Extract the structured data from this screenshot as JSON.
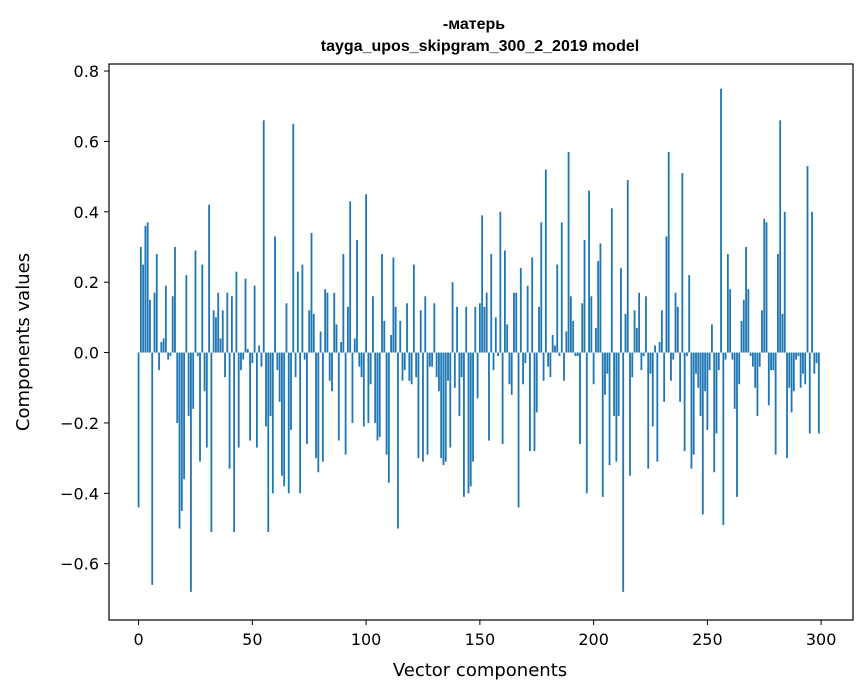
{
  "chart_data": {
    "type": "bar",
    "title": "-матерь",
    "subtitle": "tayga_upos_skipgram_300_2_2019 model",
    "xlabel": "Vector components",
    "ylabel": "Components values",
    "xlim": [
      -13,
      314
    ],
    "ylim": [
      -0.76,
      0.82
    ],
    "xticks": [
      0,
      50,
      100,
      150,
      200,
      250,
      300
    ],
    "yticks": [
      -0.6,
      -0.4,
      -0.2,
      0.0,
      0.2,
      0.4,
      0.6,
      0.8
    ],
    "xtick_labels": [
      "0",
      "50",
      "100",
      "150",
      "200",
      "250",
      "300"
    ],
    "ytick_labels": [
      "−0.6",
      "−0.4",
      "−0.2",
      "0.0",
      "0.2",
      "0.4",
      "0.6",
      "0.8"
    ],
    "bar_color": "#1f77b4",
    "grid": false,
    "legend": "none",
    "values": [
      -0.44,
      0.3,
      0.25,
      0.36,
      0.37,
      0.15,
      -0.66,
      0.17,
      0.28,
      -0.05,
      0.03,
      0.04,
      0.19,
      -0.02,
      -0.01,
      0.16,
      0.3,
      -0.2,
      -0.5,
      -0.45,
      -0.36,
      0.22,
      -0.18,
      -0.68,
      -0.16,
      0.29,
      -0.01,
      -0.31,
      0.25,
      -0.11,
      -0.27,
      0.42,
      -0.51,
      0.12,
      0.1,
      0.17,
      0.04,
      0.12,
      -0.07,
      0.17,
      -0.33,
      0.16,
      -0.51,
      0.23,
      -0.27,
      -0.05,
      -0.02,
      0.21,
      0.01,
      -0.25,
      -0.03,
      0.19,
      -0.27,
      0.02,
      -0.04,
      0.66,
      -0.21,
      -0.51,
      -0.18,
      -0.4,
      0.33,
      -0.05,
      -0.14,
      -0.35,
      -0.38,
      0.14,
      -0.4,
      -0.22,
      0.65,
      -0.07,
      0.23,
      -0.4,
      0.25,
      -0.02,
      -0.26,
      0.12,
      0.34,
      0.11,
      -0.3,
      -0.34,
      0.06,
      -0.31,
      0.18,
      0.17,
      -0.08,
      -0.11,
      0.17,
      0.08,
      -0.25,
      0.03,
      0.28,
      -0.29,
      0.13,
      0.43,
      -0.2,
      0.04,
      0.32,
      -0.04,
      -0.07,
      -0.21,
      0.45,
      -0.2,
      -0.09,
      0.16,
      -0.2,
      -0.25,
      -0.24,
      0.28,
      0.09,
      -0.29,
      -0.37,
      0.05,
      0.27,
      0.13,
      -0.5,
      0.09,
      -0.08,
      -0.05,
      0.14,
      -0.08,
      -0.09,
      0.25,
      -0.07,
      -0.3,
      0.12,
      -0.31,
      0.16,
      -0.29,
      -0.04,
      -0.04,
      0.14,
      -0.07,
      -0.11,
      -0.3,
      -0.32,
      -0.31,
      -0.08,
      -0.27,
      0.2,
      -0.1,
      0.13,
      -0.18,
      -0.07,
      -0.41,
      0.13,
      -0.4,
      -0.38,
      -0.31,
      0.13,
      -0.13,
      0.14,
      0.39,
      0.13,
      0.17,
      -0.25,
      0.28,
      -0.05,
      0.1,
      -0.01,
      0.4,
      -0.26,
      0.29,
      0.08,
      -0.09,
      -0.12,
      0.17,
      0.17,
      -0.44,
      0.24,
      -0.09,
      -0.03,
      0.19,
      -0.28,
      0.27,
      -0.28,
      -0.17,
      0.13,
      0.37,
      -0.08,
      0.52,
      -0.04,
      -0.07,
      0.05,
      0.02,
      0.25,
      -0.01,
      0.37,
      -0.08,
      0.06,
      0.57,
      0.16,
      0.09,
      -0.01,
      -0.01,
      -0.26,
      0.14,
      0.32,
      -0.4,
      0.46,
      0.16,
      -0.09,
      0.07,
      0.26,
      0.31,
      -0.41,
      -0.12,
      -0.06,
      -0.32,
      0.41,
      -0.18,
      -0.31,
      -0.18,
      0.24,
      -0.68,
      0.11,
      0.49,
      -0.35,
      -0.07,
      0.12,
      0.07,
      0.17,
      -0.05,
      -0.01,
      0.16,
      -0.33,
      -0.06,
      -0.21,
      0.02,
      -0.31,
      0.03,
      0.12,
      -0.14,
      0.33,
      0.57,
      -0.08,
      -0.02,
      0.17,
      0.13,
      -0.14,
      0.51,
      -0.28,
      -0.01,
      0.22,
      -0.33,
      -0.29,
      -0.06,
      -0.1,
      -0.18,
      -0.46,
      -0.11,
      -0.22,
      -0.05,
      0.08,
      -0.34,
      -0.23,
      -0.05,
      0.75,
      -0.49,
      -0.02,
      0.28,
      0.18,
      -0.02,
      -0.16,
      -0.41,
      -0.09,
      0.09,
      0.15,
      0.3,
      0.18,
      -0.01,
      -0.04,
      -0.1,
      -0.18,
      -0.04,
      0.12,
      0.38,
      0.37,
      -0.15,
      -0.05,
      -0.05,
      -0.29,
      0.28,
      0.66,
      0.11,
      0.4,
      -0.3,
      -0.1,
      -0.17,
      -0.11,
      -0.02,
      -0.01,
      -0.1,
      -0.06,
      -0.09,
      0.53,
      -0.23,
      0.4,
      -0.06,
      -0.03,
      -0.23
    ]
  }
}
